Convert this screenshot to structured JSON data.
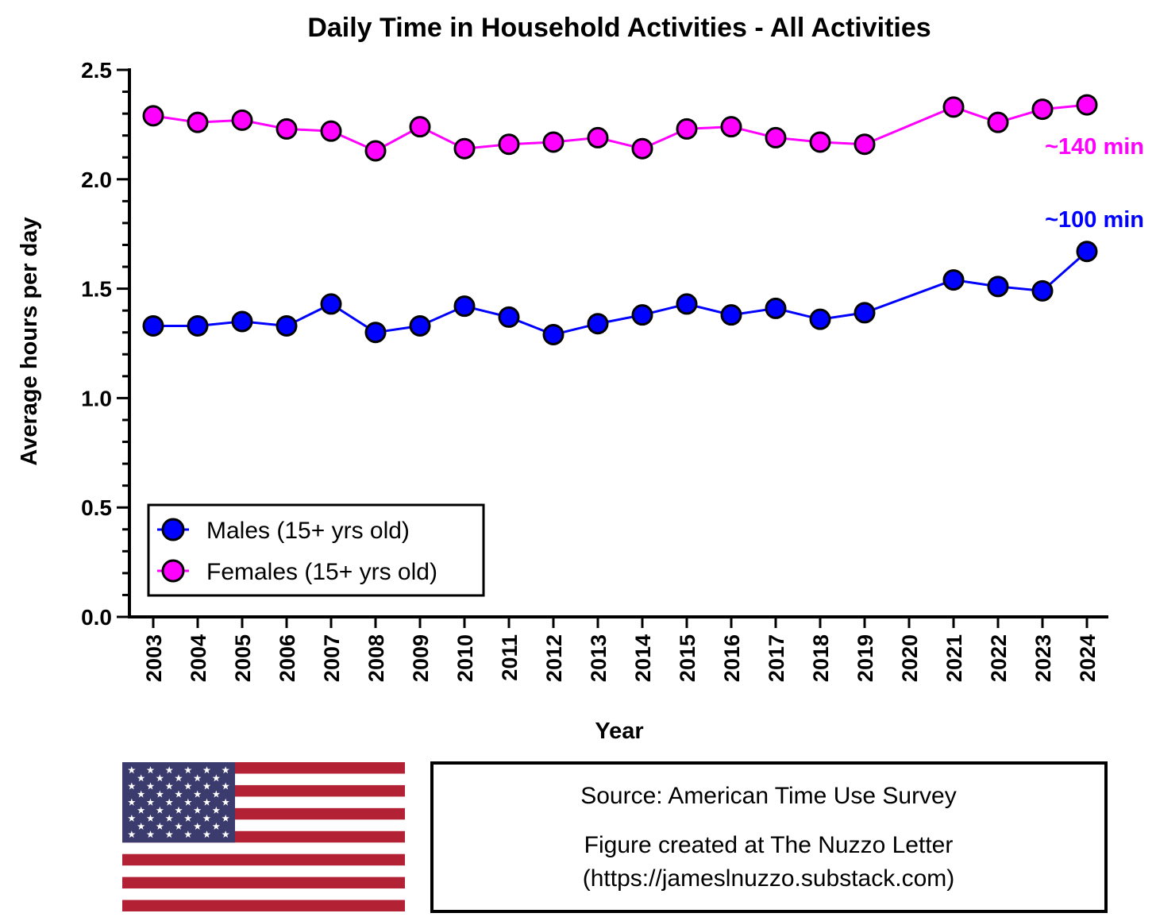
{
  "chart_data": {
    "type": "line",
    "title": "Daily Time in Household Activities - All Activities",
    "xlabel": "Year",
    "ylabel": "Average hours per day",
    "ylim": [
      0,
      2.5
    ],
    "yticks": [
      "0.0",
      "0.5",
      "1.0",
      "1.5",
      "2.0",
      "2.5"
    ],
    "categories": [
      "2003",
      "2004",
      "2005",
      "2006",
      "2007",
      "2008",
      "2009",
      "2010",
      "2011",
      "2012",
      "2013",
      "2014",
      "2015",
      "2016",
      "2017",
      "2018",
      "2019",
      "2020",
      "2021",
      "2022",
      "2023",
      "2024"
    ],
    "series": [
      {
        "name": "Males (15+ yrs old)",
        "color": "#0000ff",
        "values": [
          1.33,
          1.33,
          1.35,
          1.33,
          1.43,
          1.3,
          1.33,
          1.42,
          1.37,
          1.29,
          1.34,
          1.38,
          1.43,
          1.38,
          1.41,
          1.36,
          1.39,
          null,
          1.54,
          1.51,
          1.49,
          1.67
        ]
      },
      {
        "name": "Females (15+ yrs old)",
        "color": "#ff00ff",
        "values": [
          2.29,
          2.26,
          2.27,
          2.23,
          2.22,
          2.13,
          2.24,
          2.14,
          2.16,
          2.17,
          2.19,
          2.14,
          2.23,
          2.24,
          2.19,
          2.17,
          2.16,
          null,
          2.33,
          2.26,
          2.32,
          2.34
        ]
      }
    ],
    "legend_position": "bottom-left",
    "annotations": [
      {
        "text": "~140 min",
        "series": "Females (15+ yrs old)",
        "color": "#ff00ff"
      },
      {
        "text": "~100 min",
        "series": "Males (15+ yrs old)",
        "color": "#0000ff"
      }
    ]
  },
  "flag": {
    "name": "us-flag",
    "red": "#b22234",
    "blue": "#3c3b6e",
    "white": "#ffffff"
  },
  "source_box": {
    "line1": "Source: American Time Use Survey",
    "line2": "Figure created at The Nuzzo Letter",
    "line3": "(https://jameslnuzzo.substack.com)"
  }
}
